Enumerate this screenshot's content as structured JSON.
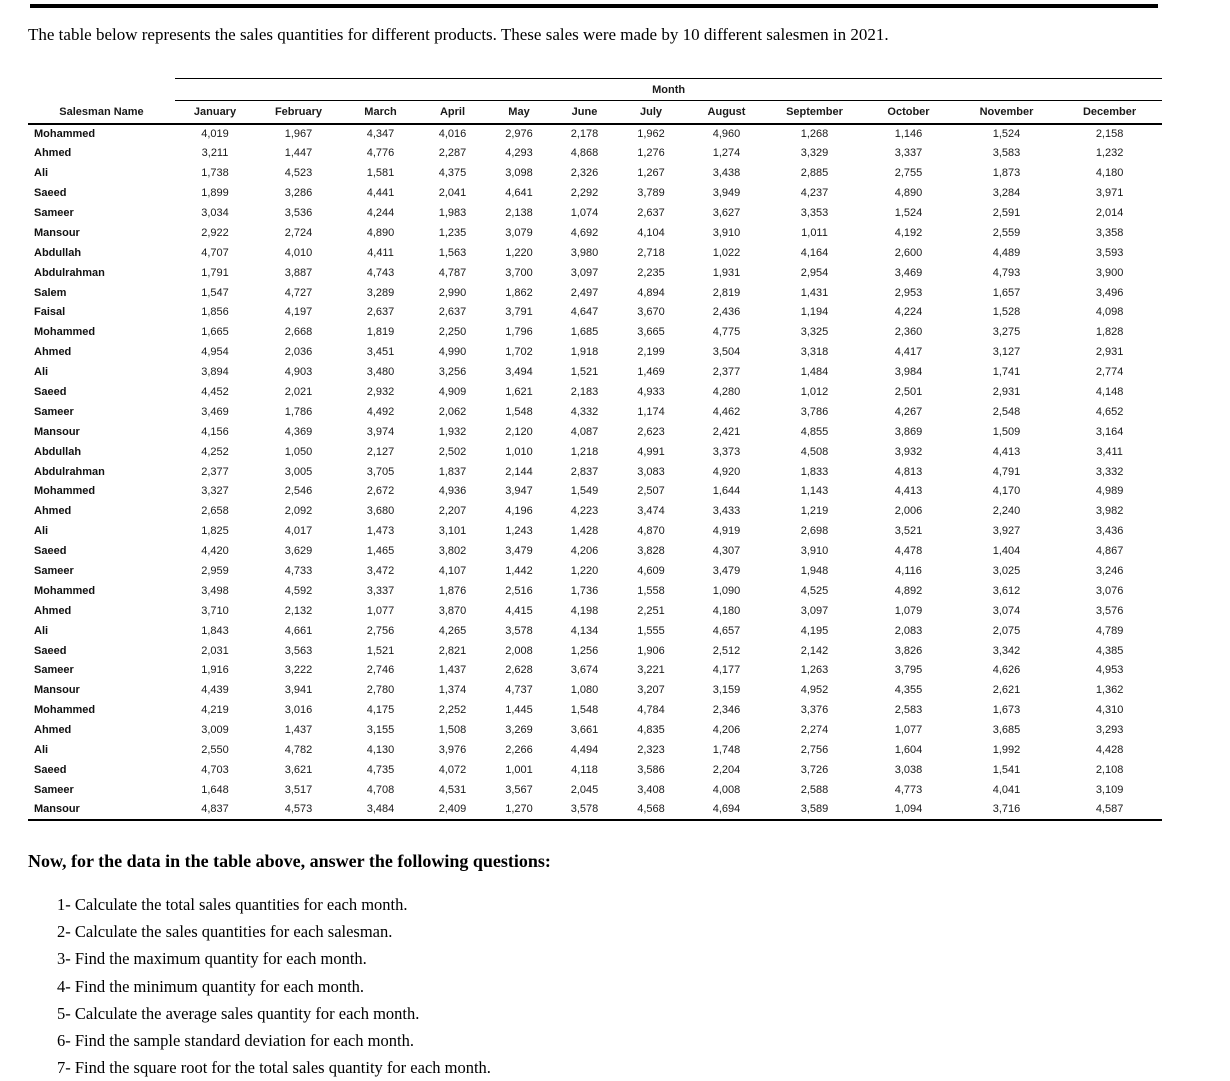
{
  "page": {
    "intro": "The table below represents the sales quantities for different products. These sales were made by 10 different salesmen in 2021.",
    "section_heading": "Now, for the data in the table above, answer the following questions:"
  },
  "table": {
    "month_group_label": "Month",
    "salesman_header": "Salesman Name",
    "months": [
      "January",
      "February",
      "March",
      "April",
      "May",
      "June",
      "July",
      "August",
      "September",
      "October",
      "November",
      "December"
    ],
    "rows": [
      {
        "name": "Mohammed",
        "values": [
          "4,019",
          "1,967",
          "4,347",
          "4,016",
          "2,976",
          "2,178",
          "1,962",
          "4,960",
          "1,268",
          "1,146",
          "1,524",
          "2,158"
        ]
      },
      {
        "name": "Ahmed",
        "values": [
          "3,211",
          "1,447",
          "4,776",
          "2,287",
          "4,293",
          "4,868",
          "1,276",
          "1,274",
          "3,329",
          "3,337",
          "3,583",
          "1,232"
        ]
      },
      {
        "name": "Ali",
        "values": [
          "1,738",
          "4,523",
          "1,581",
          "4,375",
          "3,098",
          "2,326",
          "1,267",
          "3,438",
          "2,885",
          "2,755",
          "1,873",
          "4,180"
        ]
      },
      {
        "name": "Saeed",
        "values": [
          "1,899",
          "3,286",
          "4,441",
          "2,041",
          "4,641",
          "2,292",
          "3,789",
          "3,949",
          "4,237",
          "4,890",
          "3,284",
          "3,971"
        ]
      },
      {
        "name": "Sameer",
        "values": [
          "3,034",
          "3,536",
          "4,244",
          "1,983",
          "2,138",
          "1,074",
          "2,637",
          "3,627",
          "3,353",
          "1,524",
          "2,591",
          "2,014"
        ]
      },
      {
        "name": "Mansour",
        "values": [
          "2,922",
          "2,724",
          "4,890",
          "1,235",
          "3,079",
          "4,692",
          "4,104",
          "3,910",
          "1,011",
          "4,192",
          "2,559",
          "3,358"
        ]
      },
      {
        "name": "Abdullah",
        "values": [
          "4,707",
          "4,010",
          "4,411",
          "1,563",
          "1,220",
          "3,980",
          "2,718",
          "1,022",
          "4,164",
          "2,600",
          "4,489",
          "3,593"
        ]
      },
      {
        "name": "Abdulrahman",
        "values": [
          "1,791",
          "3,887",
          "4,743",
          "4,787",
          "3,700",
          "3,097",
          "2,235",
          "1,931",
          "2,954",
          "3,469",
          "4,793",
          "3,900"
        ]
      },
      {
        "name": "Salem",
        "values": [
          "1,547",
          "4,727",
          "3,289",
          "2,990",
          "1,862",
          "2,497",
          "4,894",
          "2,819",
          "1,431",
          "2,953",
          "1,657",
          "3,496"
        ]
      },
      {
        "name": "Faisal",
        "values": [
          "1,856",
          "4,197",
          "2,637",
          "2,637",
          "3,791",
          "4,647",
          "3,670",
          "2,436",
          "1,194",
          "4,224",
          "1,528",
          "4,098"
        ]
      },
      {
        "name": "Mohammed",
        "values": [
          "1,665",
          "2,668",
          "1,819",
          "2,250",
          "1,796",
          "1,685",
          "3,665",
          "4,775",
          "3,325",
          "2,360",
          "3,275",
          "1,828"
        ]
      },
      {
        "name": "Ahmed",
        "values": [
          "4,954",
          "2,036",
          "3,451",
          "4,990",
          "1,702",
          "1,918",
          "2,199",
          "3,504",
          "3,318",
          "4,417",
          "3,127",
          "2,931"
        ]
      },
      {
        "name": "Ali",
        "values": [
          "3,894",
          "4,903",
          "3,480",
          "3,256",
          "3,494",
          "1,521",
          "1,469",
          "2,377",
          "1,484",
          "3,984",
          "1,741",
          "2,774"
        ]
      },
      {
        "name": "Saeed",
        "values": [
          "4,452",
          "2,021",
          "2,932",
          "4,909",
          "1,621",
          "2,183",
          "4,933",
          "4,280",
          "1,012",
          "2,501",
          "2,931",
          "4,148"
        ]
      },
      {
        "name": "Sameer",
        "values": [
          "3,469",
          "1,786",
          "4,492",
          "2,062",
          "1,548",
          "4,332",
          "1,174",
          "4,462",
          "3,786",
          "4,267",
          "2,548",
          "4,652"
        ]
      },
      {
        "name": "Mansour",
        "values": [
          "4,156",
          "4,369",
          "3,974",
          "1,932",
          "2,120",
          "4,087",
          "2,623",
          "2,421",
          "4,855",
          "3,869",
          "1,509",
          "3,164"
        ]
      },
      {
        "name": "Abdullah",
        "values": [
          "4,252",
          "1,050",
          "2,127",
          "2,502",
          "1,010",
          "1,218",
          "4,991",
          "3,373",
          "4,508",
          "3,932",
          "4,413",
          "3,411"
        ]
      },
      {
        "name": "Abdulrahman",
        "values": [
          "2,377",
          "3,005",
          "3,705",
          "1,837",
          "2,144",
          "2,837",
          "3,083",
          "4,920",
          "1,833",
          "4,813",
          "4,791",
          "3,332"
        ]
      },
      {
        "name": "Mohammed",
        "values": [
          "3,327",
          "2,546",
          "2,672",
          "4,936",
          "3,947",
          "1,549",
          "2,507",
          "1,644",
          "1,143",
          "4,413",
          "4,170",
          "4,989"
        ]
      },
      {
        "name": "Ahmed",
        "values": [
          "2,658",
          "2,092",
          "3,680",
          "2,207",
          "4,196",
          "4,223",
          "3,474",
          "3,433",
          "1,219",
          "2,006",
          "2,240",
          "3,982"
        ]
      },
      {
        "name": "Ali",
        "values": [
          "1,825",
          "4,017",
          "1,473",
          "3,101",
          "1,243",
          "1,428",
          "4,870",
          "4,919",
          "2,698",
          "3,521",
          "3,927",
          "3,436"
        ]
      },
      {
        "name": "Saeed",
        "values": [
          "4,420",
          "3,629",
          "1,465",
          "3,802",
          "3,479",
          "4,206",
          "3,828",
          "4,307",
          "3,910",
          "4,478",
          "1,404",
          "4,867"
        ]
      },
      {
        "name": "Sameer",
        "values": [
          "2,959",
          "4,733",
          "3,472",
          "4,107",
          "1,442",
          "1,220",
          "4,609",
          "3,479",
          "1,948",
          "4,116",
          "3,025",
          "3,246"
        ]
      },
      {
        "name": "Mohammed",
        "values": [
          "3,498",
          "4,592",
          "3,337",
          "1,876",
          "2,516",
          "1,736",
          "1,558",
          "1,090",
          "4,525",
          "4,892",
          "3,612",
          "3,076"
        ]
      },
      {
        "name": "Ahmed",
        "values": [
          "3,710",
          "2,132",
          "1,077",
          "3,870",
          "4,415",
          "4,198",
          "2,251",
          "4,180",
          "3,097",
          "1,079",
          "3,074",
          "3,576"
        ]
      },
      {
        "name": "Ali",
        "values": [
          "1,843",
          "4,661",
          "2,756",
          "4,265",
          "3,578",
          "4,134",
          "1,555",
          "4,657",
          "4,195",
          "2,083",
          "2,075",
          "4,789"
        ]
      },
      {
        "name": "Saeed",
        "values": [
          "2,031",
          "3,563",
          "1,521",
          "2,821",
          "2,008",
          "1,256",
          "1,906",
          "2,512",
          "2,142",
          "3,826",
          "3,342",
          "4,385"
        ]
      },
      {
        "name": "Sameer",
        "values": [
          "1,916",
          "3,222",
          "2,746",
          "1,437",
          "2,628",
          "3,674",
          "3,221",
          "4,177",
          "1,263",
          "3,795",
          "4,626",
          "4,953"
        ]
      },
      {
        "name": "Mansour",
        "values": [
          "4,439",
          "3,941",
          "2,780",
          "1,374",
          "4,737",
          "1,080",
          "3,207",
          "3,159",
          "4,952",
          "4,355",
          "2,621",
          "1,362"
        ]
      },
      {
        "name": "Mohammed",
        "values": [
          "4,219",
          "3,016",
          "4,175",
          "2,252",
          "1,445",
          "1,548",
          "4,784",
          "2,346",
          "3,376",
          "2,583",
          "1,673",
          "4,310"
        ]
      },
      {
        "name": "Ahmed",
        "values": [
          "3,009",
          "1,437",
          "3,155",
          "1,508",
          "3,269",
          "3,661",
          "4,835",
          "4,206",
          "2,274",
          "1,077",
          "3,685",
          "3,293"
        ]
      },
      {
        "name": "Ali",
        "values": [
          "2,550",
          "4,782",
          "4,130",
          "3,976",
          "2,266",
          "4,494",
          "2,323",
          "1,748",
          "2,756",
          "1,604",
          "1,992",
          "4,428"
        ]
      },
      {
        "name": "Saeed",
        "values": [
          "4,703",
          "3,621",
          "4,735",
          "4,072",
          "1,001",
          "4,118",
          "3,586",
          "2,204",
          "3,726",
          "3,038",
          "1,541",
          "2,108"
        ]
      },
      {
        "name": "Sameer",
        "values": [
          "1,648",
          "3,517",
          "4,708",
          "4,531",
          "3,567",
          "2,045",
          "3,408",
          "4,008",
          "2,588",
          "4,773",
          "4,041",
          "3,109"
        ]
      },
      {
        "name": "Mansour",
        "values": [
          "4,837",
          "4,573",
          "3,484",
          "2,409",
          "1,270",
          "3,578",
          "4,568",
          "4,694",
          "3,589",
          "1,094",
          "3,716",
          "4,587"
        ]
      }
    ]
  },
  "questions": [
    "1- Calculate the total sales quantities for each month.",
    "2- Calculate the sales quantities for each salesman.",
    "3- Find the maximum quantity for each month.",
    "4- Find the minimum quantity for each month.",
    "5- Calculate the average sales quantity for each month.",
    "6- Find the sample standard deviation for each month.",
    "7- Find the square root for the total sales quantity for each month."
  ]
}
